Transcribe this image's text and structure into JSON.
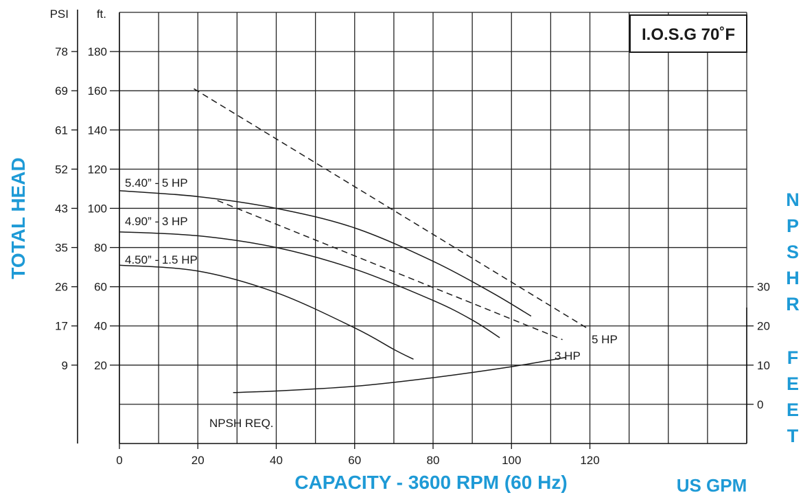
{
  "chart_data": {
    "type": "line",
    "title": "I.O.S.G 70˚F",
    "xlabel": "CAPACITY - 3600 RPM (60 Hz)",
    "xunit": "US GPM",
    "ylabel": "TOTAL HEAD",
    "y2label": "NPSHR FEET",
    "ylabel_psi_unit": "PSI",
    "ylabel_ft_unit": "ft.",
    "xlim": [
      0,
      160
    ],
    "ylim": [
      -20,
      200
    ],
    "x_ticks": [
      "0",
      "20",
      "40",
      "60",
      "80",
      "100",
      "120"
    ],
    "ft_ticks": [
      {
        "value": 20,
        "label": "20"
      },
      {
        "value": 40,
        "label": "40"
      },
      {
        "value": 60,
        "label": "60"
      },
      {
        "value": 80,
        "label": "80"
      },
      {
        "value": 100,
        "label": "100"
      },
      {
        "value": 120,
        "label": "120"
      },
      {
        "value": 140,
        "label": "140"
      },
      {
        "value": 160,
        "label": "160"
      },
      {
        "value": 180,
        "label": "180"
      }
    ],
    "psi_ticks": [
      {
        "value": 20,
        "label": "9"
      },
      {
        "value": 40,
        "label": "17"
      },
      {
        "value": 60,
        "label": "26"
      },
      {
        "value": 80,
        "label": "35"
      },
      {
        "value": 100,
        "label": "43"
      },
      {
        "value": 120,
        "label": "52"
      },
      {
        "value": 140,
        "label": "61"
      },
      {
        "value": 160,
        "label": "69"
      },
      {
        "value": 180,
        "label": "78"
      }
    ],
    "npsh_ticks": [
      {
        "value": 0,
        "label": "0"
      },
      {
        "value": 10,
        "label": "10"
      },
      {
        "value": 20,
        "label": "20"
      },
      {
        "value": 30,
        "label": "30"
      }
    ],
    "grid": true,
    "series": [
      {
        "name": "5.40” - 5 HP",
        "style": "solid",
        "x": [
          0,
          20,
          40,
          60,
          80,
          95,
          105
        ],
        "y": [
          109,
          106,
          100,
          90,
          73,
          57,
          45
        ]
      },
      {
        "name": "4.90” - 3 HP",
        "style": "solid",
        "x": [
          0,
          20,
          40,
          60,
          80,
          90,
          97
        ],
        "y": [
          88,
          86,
          80,
          69,
          53,
          43,
          34
        ]
      },
      {
        "name": "4.50” - 1.5 HP",
        "style": "solid",
        "x": [
          0,
          20,
          40,
          60,
          70,
          75
        ],
        "y": [
          71,
          68,
          57,
          39,
          28,
          23
        ]
      },
      {
        "name": "5 HP",
        "style": "dashed",
        "x": [
          19,
          120
        ],
        "y": [
          161,
          38
        ]
      },
      {
        "name": "3 HP",
        "style": "dashed",
        "x": [
          25,
          113
        ],
        "y": [
          104,
          33
        ]
      },
      {
        "name": "NPSH REQ.",
        "style": "solid",
        "axis": "npsh",
        "x": [
          29,
          40,
          60,
          80,
          100,
          114
        ],
        "y": [
          3,
          3.4,
          4.6,
          6.8,
          9.6,
          12
        ]
      }
    ]
  }
}
